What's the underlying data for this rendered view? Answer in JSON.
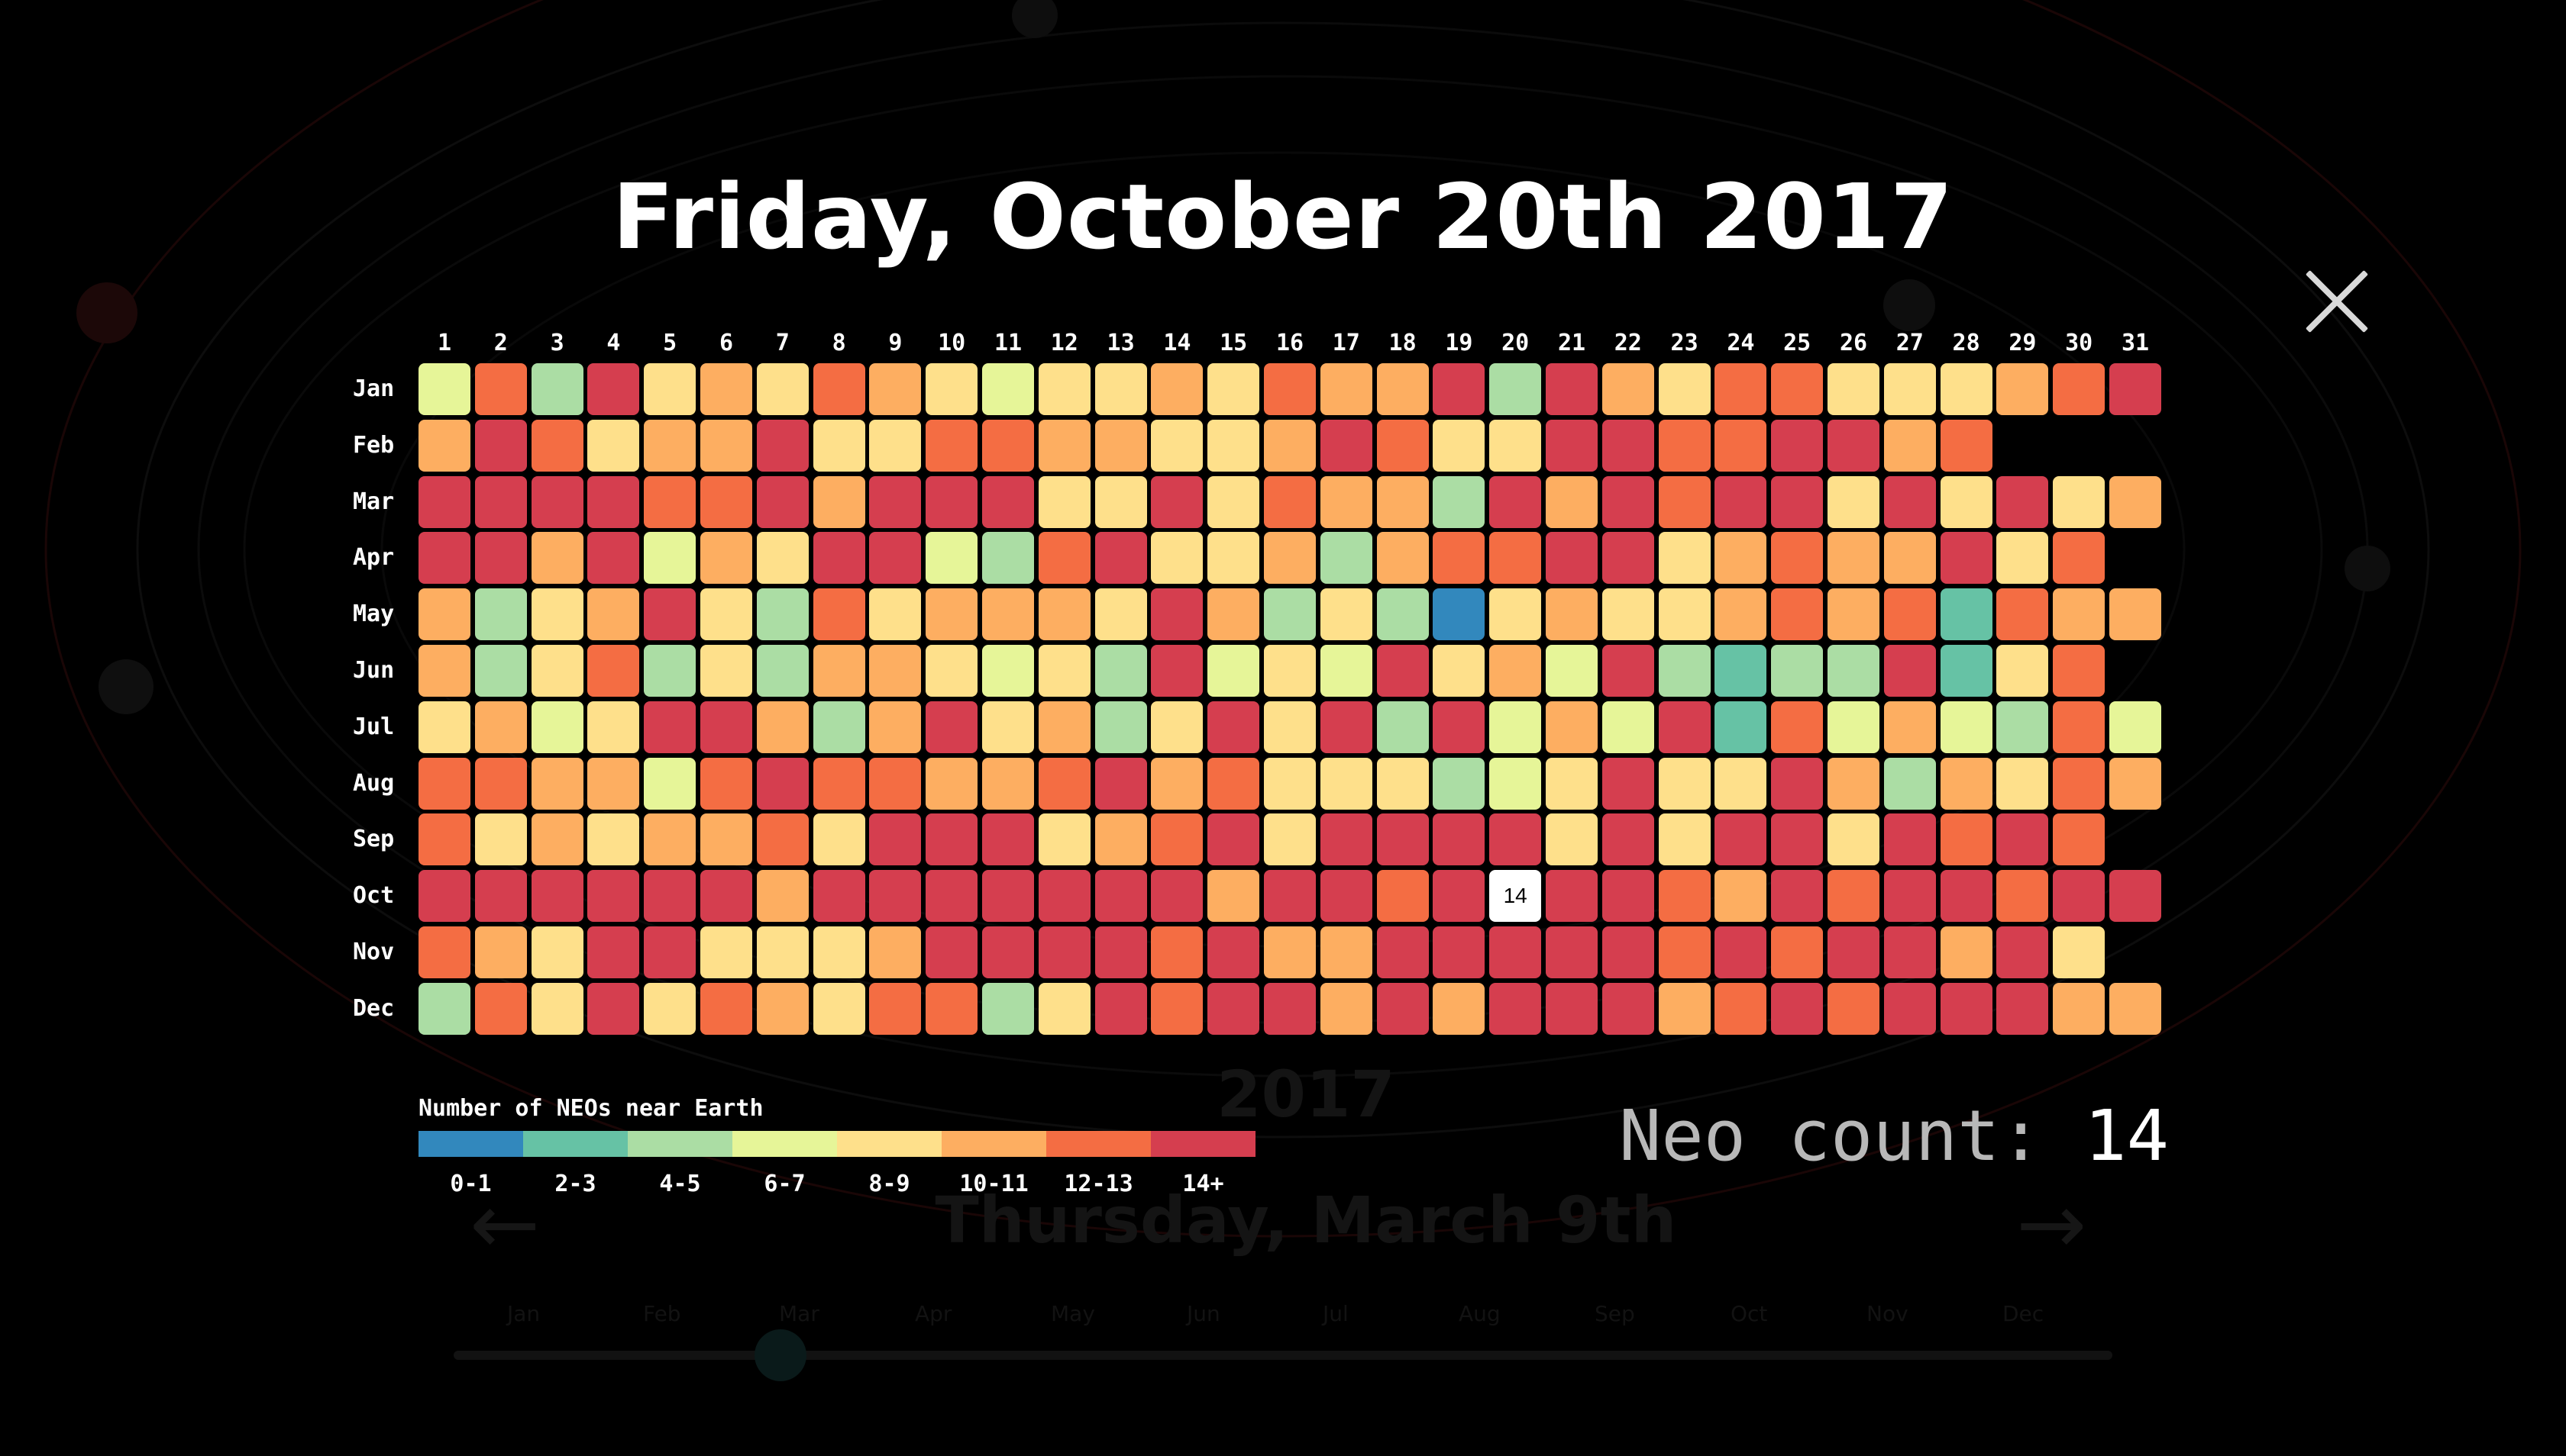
{
  "header": {
    "title": "Friday, October 20th 2017"
  },
  "close_icon": "close-icon",
  "background": {
    "year": "2017",
    "date": "Thursday, March 9th",
    "prev_icon": "arrow-left-icon",
    "next_icon": "arrow-right-icon",
    "timeline_months": [
      "Jan",
      "Feb",
      "Mar",
      "Apr",
      "May",
      "Jun",
      "Jul",
      "Aug",
      "Sep",
      "Oct",
      "Nov",
      "Dec"
    ]
  },
  "chart_data": {
    "type": "heatmap",
    "title": "",
    "x": [
      1,
      2,
      3,
      4,
      5,
      6,
      7,
      8,
      9,
      10,
      11,
      12,
      13,
      14,
      15,
      16,
      17,
      18,
      19,
      20,
      21,
      22,
      23,
      24,
      25,
      26,
      27,
      28,
      29,
      30,
      31
    ],
    "y": [
      "Jan",
      "Feb",
      "Mar",
      "Apr",
      "May",
      "Jun",
      "Jul",
      "Aug",
      "Sep",
      "Oct",
      "Nov",
      "Dec"
    ],
    "bucket_colors": [
      "#3288bd",
      "#66c2a5",
      "#abdda4",
      "#e6f598",
      "#fee08b",
      "#fdae61",
      "#f46d43",
      "#d53e4f"
    ],
    "values": [
      [
        3,
        6,
        2,
        7,
        4,
        5,
        4,
        6,
        5,
        4,
        3,
        4,
        4,
        5,
        4,
        6,
        5,
        5,
        7,
        2,
        7,
        5,
        4,
        6,
        6,
        4,
        4,
        4,
        5,
        6,
        7
      ],
      [
        5,
        7,
        6,
        4,
        5,
        5,
        7,
        4,
        4,
        6,
        6,
        5,
        5,
        4,
        4,
        5,
        7,
        6,
        4,
        4,
        7,
        7,
        6,
        6,
        7,
        7,
        5,
        6
      ],
      [
        7,
        7,
        7,
        7,
        6,
        6,
        7,
        5,
        7,
        7,
        7,
        4,
        4,
        7,
        4,
        6,
        5,
        5,
        2,
        7,
        5,
        7,
        6,
        7,
        7,
        4,
        7,
        4,
        7,
        4,
        5
      ],
      [
        7,
        7,
        5,
        7,
        3,
        5,
        4,
        7,
        7,
        3,
        2,
        6,
        7,
        4,
        4,
        5,
        2,
        5,
        6,
        6,
        7,
        7,
        4,
        5,
        6,
        5,
        5,
        7,
        4,
        6
      ],
      [
        5,
        2,
        4,
        5,
        7,
        4,
        2,
        6,
        4,
        5,
        5,
        5,
        4,
        7,
        5,
        2,
        4,
        2,
        0,
        4,
        5,
        4,
        4,
        5,
        6,
        5,
        6,
        1,
        6,
        5,
        5
      ],
      [
        5,
        2,
        4,
        6,
        2,
        4,
        2,
        5,
        5,
        4,
        3,
        4,
        2,
        7,
        3,
        4,
        3,
        7,
        4,
        5,
        3,
        7,
        2,
        1,
        2,
        2,
        7,
        1,
        4,
        6
      ],
      [
        4,
        5,
        3,
        4,
        7,
        7,
        5,
        2,
        5,
        7,
        4,
        5,
        2,
        4,
        7,
        4,
        7,
        2,
        7,
        3,
        5,
        3,
        7,
        1,
        6,
        3,
        5,
        3,
        2,
        6,
        3
      ],
      [
        6,
        6,
        5,
        5,
        3,
        6,
        7,
        6,
        6,
        5,
        5,
        6,
        7,
        5,
        6,
        4,
        4,
        4,
        2,
        3,
        4,
        7,
        4,
        4,
        7,
        5,
        2,
        5,
        4,
        6,
        5
      ],
      [
        6,
        4,
        5,
        4,
        5,
        5,
        6,
        4,
        7,
        7,
        7,
        4,
        5,
        6,
        7,
        4,
        7,
        7,
        7,
        7,
        4,
        7,
        4,
        7,
        7,
        4,
        7,
        6,
        7,
        6
      ],
      [
        7,
        7,
        7,
        7,
        7,
        7,
        5,
        7,
        7,
        7,
        7,
        7,
        7,
        7,
        5,
        7,
        7,
        6,
        7,
        7,
        7,
        7,
        6,
        5,
        7,
        6,
        7,
        7,
        6,
        7,
        7
      ],
      [
        6,
        5,
        4,
        7,
        7,
        4,
        4,
        4,
        5,
        7,
        7,
        7,
        7,
        6,
        7,
        5,
        5,
        7,
        7,
        7,
        7,
        7,
        6,
        7,
        6,
        7,
        7,
        5,
        7,
        4
      ],
      [
        2,
        6,
        4,
        7,
        4,
        6,
        5,
        4,
        6,
        6,
        2,
        4,
        7,
        6,
        7,
        7,
        5,
        7,
        5,
        7,
        7,
        7,
        5,
        6,
        7,
        6,
        7,
        7,
        7,
        5,
        5
      ]
    ],
    "selected": {
      "month": "Oct",
      "day": 20,
      "value": "14"
    },
    "legend": {
      "title": "Number of NEOs near Earth",
      "labels": [
        "0-1",
        "2-3",
        "4-5",
        "6-7",
        "8-9",
        "10-11",
        "12-13",
        "14+"
      ]
    }
  },
  "neo_count": {
    "label": "Neo count:",
    "value": "14"
  }
}
